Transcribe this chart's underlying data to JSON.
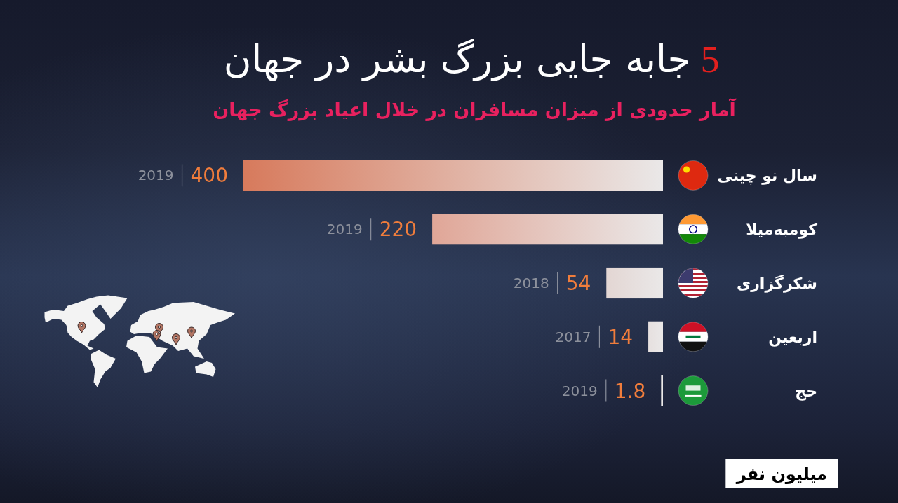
{
  "chart_data": {
    "type": "bar",
    "orientation": "horizontal",
    "title": "5 جابه جایی بزرگ بشر در جهان",
    "subtitle": "آمار حدودی از میزان مسافران در خلال اعیاد بزرگ جهان",
    "categories": [
      "سال نو چینی",
      "کومبه‌میلا",
      "شکرگزاری",
      "اربعین",
      "حج"
    ],
    "values": [
      400,
      220,
      54,
      14,
      1.8
    ],
    "colors": [
      "#d77a5c",
      "#e0a697",
      "#e3d6d3",
      "#e6e0df",
      "#e8e6e6"
    ],
    "xlim": [
      400,
      0
    ],
    "data_labels": true,
    "tick_labels": "y",
    "annotations": [
      "2019",
      "2019",
      "2018",
      "2017",
      "2019",
      "میلیون نفر"
    ]
  }
}
